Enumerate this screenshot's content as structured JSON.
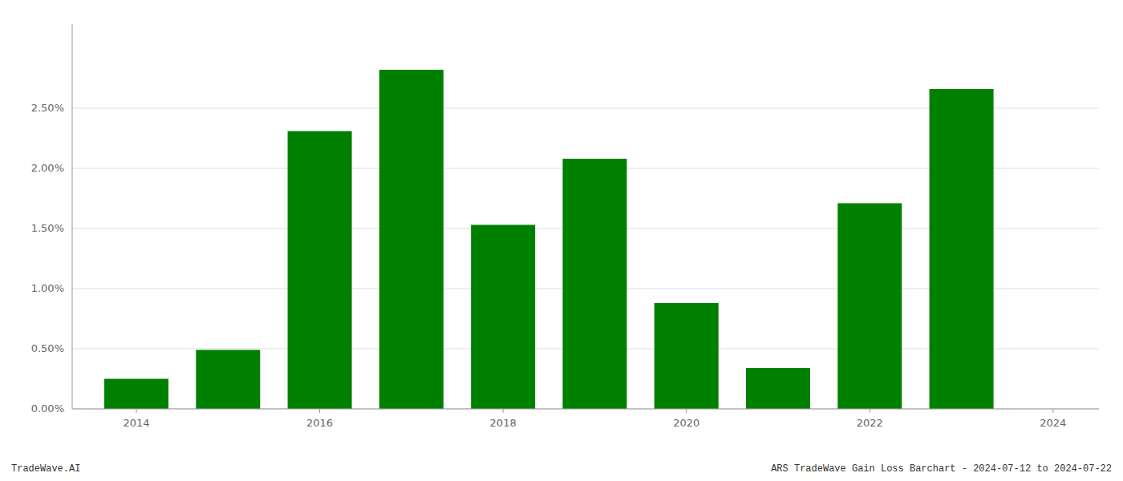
{
  "chart_data": {
    "type": "bar",
    "x": [
      2014,
      2015,
      2016,
      2017,
      2018,
      2019,
      2020,
      2021,
      2022,
      2023
    ],
    "values": [
      0.0025,
      0.0049,
      0.0231,
      0.0282,
      0.0153,
      0.0208,
      0.0088,
      0.0034,
      0.0171,
      0.0266
    ],
    "color": "#008000",
    "xlim": [
      2013.3,
      2024.5
    ],
    "xticks": [
      2014,
      2016,
      2018,
      2020,
      2022,
      2024
    ],
    "ylim": [
      0.0,
      0.032
    ],
    "yticks": [
      {
        "value": 0.0,
        "label": "0.00%"
      },
      {
        "value": 0.005,
        "label": "0.50%"
      },
      {
        "value": 0.01,
        "label": "1.00%"
      },
      {
        "value": 0.015,
        "label": "1.50%"
      },
      {
        "value": 0.02,
        "label": "2.00%"
      },
      {
        "value": 0.025,
        "label": "2.50%"
      }
    ],
    "grid": true,
    "annotations": [
      "TradeWave.AI",
      "ARS TradeWave Gain Loss Barchart - 2024-07-12 to 2024-07-22"
    ]
  }
}
